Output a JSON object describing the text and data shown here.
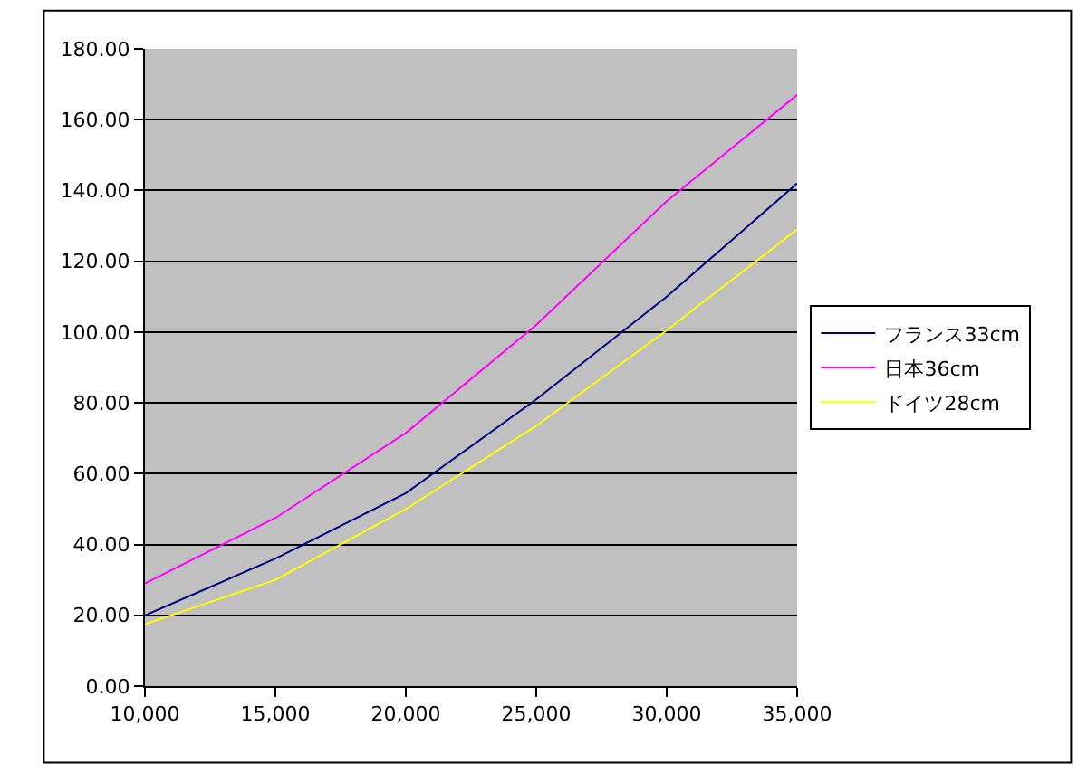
{
  "chart_data": {
    "type": "line",
    "x": [
      10000,
      15000,
      20000,
      25000,
      30000,
      35000
    ],
    "series": [
      {
        "name": "フランス33cm",
        "color": "#000080",
        "values": [
          20,
          36,
          54.5,
          81,
          110,
          142
        ]
      },
      {
        "name": "日本36cm",
        "color": "#ff00ff",
        "values": [
          29,
          47.5,
          71.5,
          102,
          137,
          167
        ]
      },
      {
        "name": "ドイツ28cm",
        "color": "#ffff00",
        "values": [
          17.5,
          30,
          50,
          73.5,
          100.5,
          129
        ]
      }
    ],
    "xlim": [
      10000,
      35000
    ],
    "xticks": [
      {
        "value": 10000,
        "label": "10,000"
      },
      {
        "value": 15000,
        "label": "15,000"
      },
      {
        "value": 20000,
        "label": "20,000"
      },
      {
        "value": 25000,
        "label": "25,000"
      },
      {
        "value": 30000,
        "label": "30,000"
      },
      {
        "value": 35000,
        "label": "35,000"
      }
    ],
    "ylim": [
      0,
      180
    ],
    "yticks": [
      {
        "value": 0,
        "label": "0.00"
      },
      {
        "value": 20,
        "label": "20.00"
      },
      {
        "value": 40,
        "label": "40.00"
      },
      {
        "value": 60,
        "label": "60.00"
      },
      {
        "value": 80,
        "label": "80.00"
      },
      {
        "value": 100,
        "label": "100.00"
      },
      {
        "value": 120,
        "label": "120.00"
      },
      {
        "value": 140,
        "label": "140.00"
      },
      {
        "value": 160,
        "label": "160.00"
      },
      {
        "value": 180,
        "label": "180.00"
      }
    ],
    "grid": "y",
    "legend": "right",
    "marker": "none",
    "line_style": "solid"
  }
}
